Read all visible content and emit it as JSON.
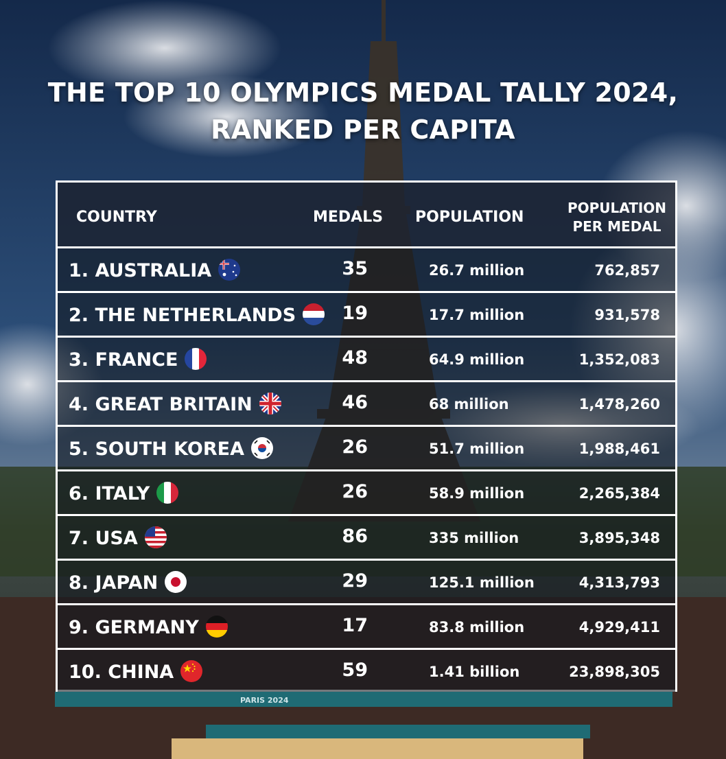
{
  "title_line1": "THE TOP 10 OLYMPICS MEDAL TALLY 2024,",
  "title_line2": "RANKED PER CAPITA",
  "colors": {
    "header_bg": "#1c2230",
    "text": "#ffffff",
    "border": "#ffffff"
  },
  "background_banner_text": "PARIS 2024",
  "chart_data": {
    "type": "table",
    "columns": [
      "COUNTRY",
      "MEDALS",
      "POPULATION",
      "POPULATION PER MEDAL"
    ],
    "columns_display": {
      "ppm_line1": "POPULATION",
      "ppm_line2": "PER MEDAL"
    },
    "rows": [
      {
        "country": "1. AUSTRALIA",
        "flag": "australia-flag",
        "medals": "35",
        "population": "26.7 million",
        "per_medal": "762,857"
      },
      {
        "country": "2. THE NETHERLANDS",
        "flag": "netherlands-flag",
        "medals": "19",
        "population": "17.7 million",
        "per_medal": "931,578"
      },
      {
        "country": "3. FRANCE",
        "flag": "france-flag",
        "medals": "48",
        "population": "64.9 million",
        "per_medal": "1,352,083"
      },
      {
        "country": "4. GREAT BRITAIN",
        "flag": "uk-flag",
        "medals": "46",
        "population": "68 million",
        "per_medal": "1,478,260"
      },
      {
        "country": "5. SOUTH KOREA",
        "flag": "south-korea-flag",
        "medals": "26",
        "population": "51.7 million",
        "per_medal": "1,988,461"
      },
      {
        "country": "6. ITALY",
        "flag": "italy-flag",
        "medals": "26",
        "population": "58.9 million",
        "per_medal": "2,265,384"
      },
      {
        "country": "7. USA",
        "flag": "usa-flag",
        "medals": "86",
        "population": "335 million",
        "per_medal": "3,895,348"
      },
      {
        "country": "8. JAPAN",
        "flag": "japan-flag",
        "medals": "29",
        "population": "125.1 million",
        "per_medal": "4,313,793"
      },
      {
        "country": "9. GERMANY",
        "flag": "germany-flag",
        "medals": "17",
        "population": "83.8 million",
        "per_medal": "4,929,411"
      },
      {
        "country": "10. CHINA",
        "flag": "china-flag",
        "medals": "59",
        "population": "1.41 billion",
        "per_medal": "23,898,305"
      }
    ]
  }
}
